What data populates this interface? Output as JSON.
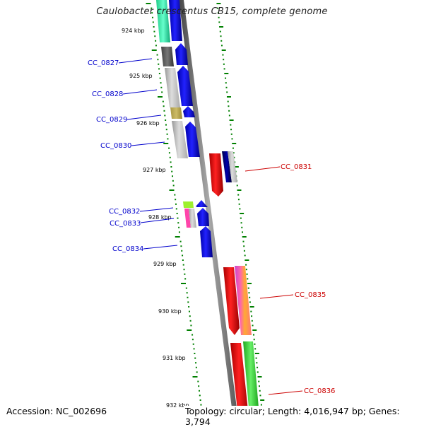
{
  "title": "Caulobacter crescentus CB15, complete genome",
  "footer": {
    "accession": "Accession: NC_002696",
    "stats": "Topology: circular; Length: 4,016,947 bp; Genes: 3,794"
  },
  "scale_labels": [
    "924 kbp",
    "925 kbp",
    "926 kbp",
    "927 kbp",
    "928 kbp",
    "929 kbp",
    "930 kbp",
    "931 kbp",
    "932 kbp"
  ],
  "gene_labels_left": [
    "CC_0827",
    "CC_0828",
    "CC_0829",
    "CC_0830",
    "CC_0832",
    "CC_0833",
    "CC_0834"
  ],
  "gene_labels_right": [
    "CC_0831",
    "CC_0835",
    "CC_0836"
  ],
  "colors": {
    "left_label": "#0000cc",
    "right_label": "#cc0000",
    "gene_forward": "#0000ff",
    "gene_reverse": "#ff0000",
    "tick": "#008000",
    "backbone": "#808080"
  }
}
